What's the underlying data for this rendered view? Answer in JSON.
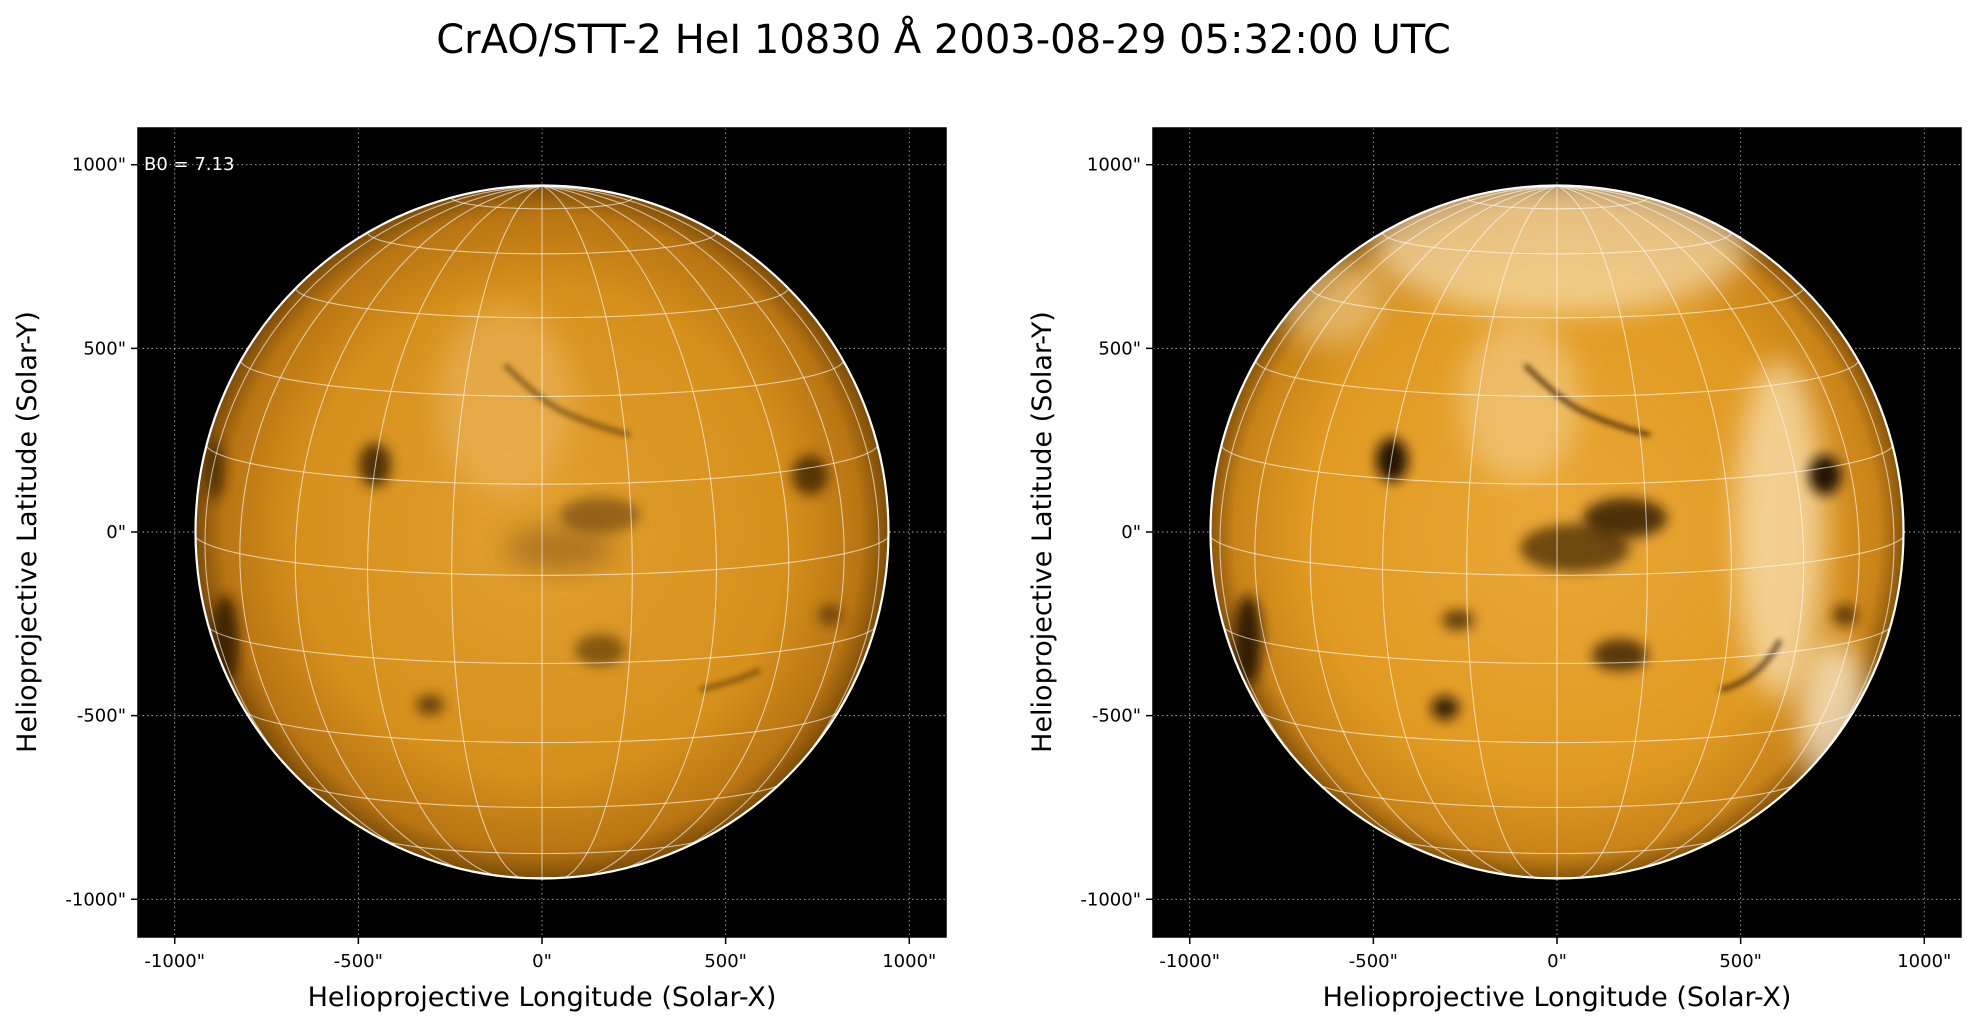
{
  "figure": {
    "title": "CrAO/STT-2 HeI 10830 Å 2003-08-29 05:32:00 UTC"
  },
  "colors": {
    "disk_left": "#d9921a",
    "disk_right": "#e8a32a",
    "background": "#000000",
    "grid": "#ffffff"
  },
  "panels": [
    {
      "id": "left",
      "xlabel": "Helioprojective Longitude (Solar-X)",
      "ylabel": "Helioprojective Latitude (Solar-Y)",
      "annotation": "B0 = 7.13",
      "x_ticks": [
        "-1000\"",
        "-500\"",
        "0\"",
        "500\"",
        "1000\""
      ],
      "y_ticks": [
        "1000\"",
        "500\"",
        "0\"",
        "-500\"",
        "-1000\""
      ]
    },
    {
      "id": "right",
      "xlabel": "Helioprojective Longitude (Solar-X)",
      "ylabel": "Helioprojective Latitude (Solar-Y)",
      "annotation": "",
      "x_ticks": [
        "-1000\"",
        "-500\"",
        "0\"",
        "500\"",
        "1000\""
      ],
      "y_ticks": [
        "1000\"",
        "500\"",
        "0\"",
        "-500\"",
        "-1000\""
      ]
    }
  ],
  "image": {
    "axis_range_arcsec": [
      -1100,
      1100
    ],
    "tick_values_arcsec": [
      -1000,
      -500,
      0,
      500,
      1000
    ],
    "solar_radius_arcsec": 950,
    "b0_deg": 7.13,
    "grid_spacing_deg": 15
  }
}
